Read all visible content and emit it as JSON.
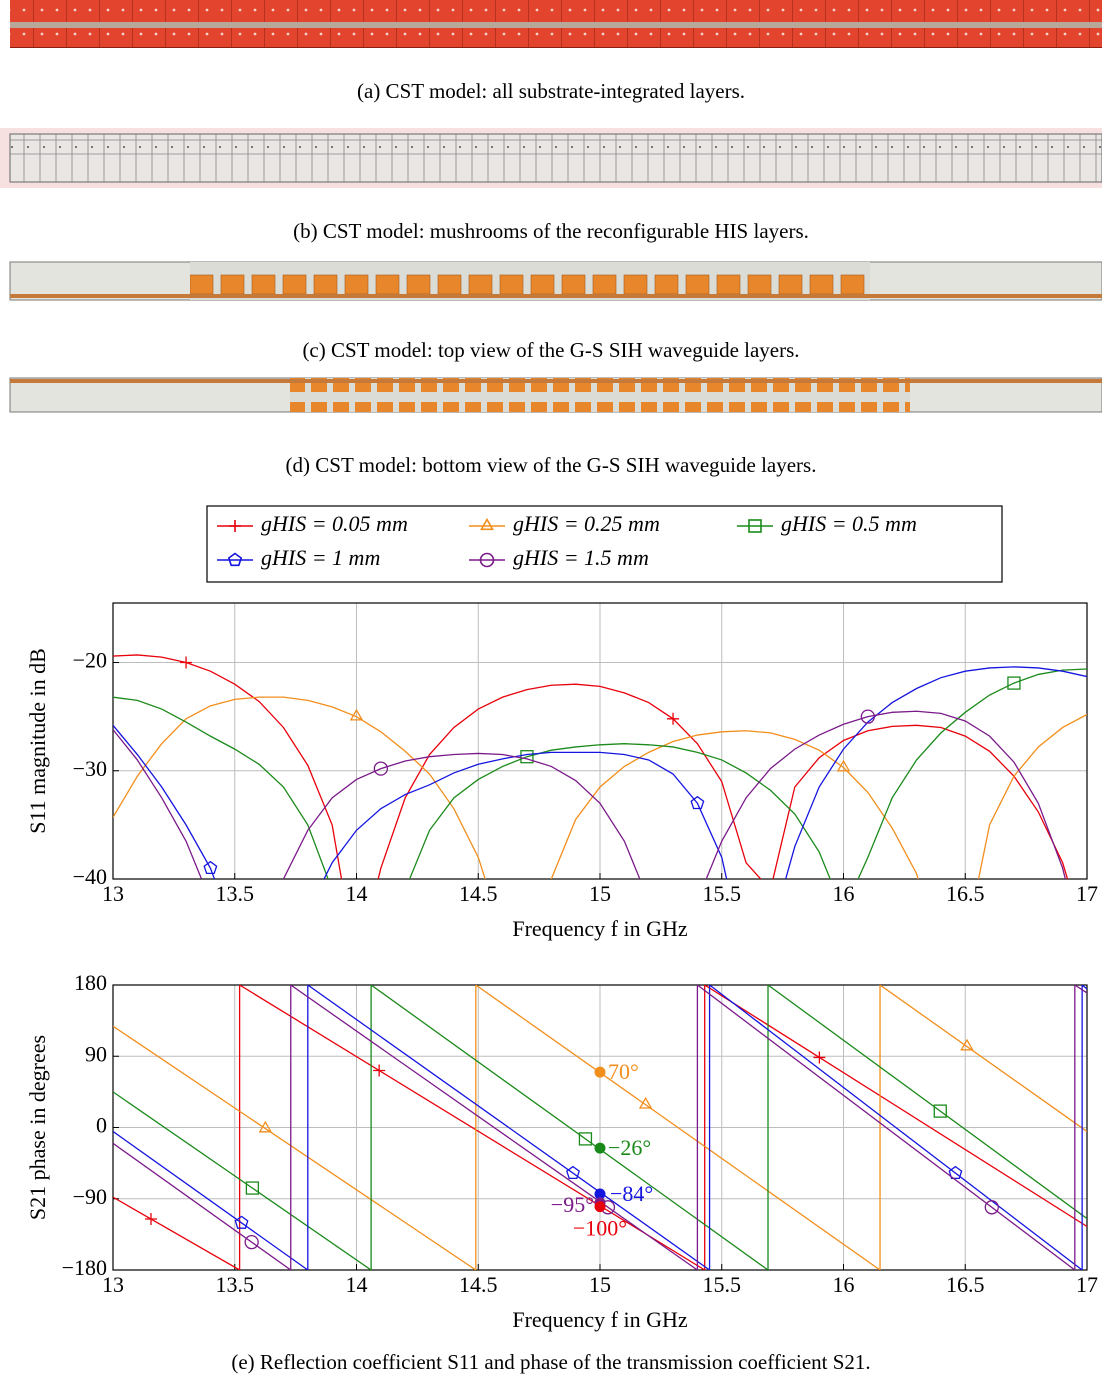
{
  "captions": [
    "(a) CST model: all substrate-integrated layers.",
    "(b) CST model: mushrooms of the reconfigurable HIS layers.",
    "(c) CST model: top view of the G-S SIH waveguide layers.",
    "(d) CST model: bottom view of the G-S SIH waveguide layers.",
    "(e) Reflection coefficient S11 and phase of the transmission coefficient S21."
  ],
  "chart_data": [
    {
      "type": "line",
      "xlabel": "Frequency f in GHz",
      "ylabel": "S11 magnitude in dB",
      "xlim": [
        13,
        17
      ],
      "ylim": [
        -40,
        -14.5
      ],
      "xticks": [
        13,
        13.5,
        14,
        14.5,
        15,
        15.5,
        16,
        16.5,
        17
      ],
      "yticks": [
        {
          "value": -40,
          "label": "−40"
        },
        {
          "value": -30,
          "label": "−30"
        },
        {
          "value": -20,
          "label": "−20"
        }
      ],
      "grid": true,
      "legend": "top",
      "x": [
        13,
        13.1,
        13.2,
        13.3,
        13.4,
        13.5,
        13.6,
        13.7,
        13.8,
        13.9,
        14,
        14.1,
        14.2,
        14.3,
        14.4,
        14.5,
        14.6,
        14.7,
        14.8,
        14.9,
        15,
        15.1,
        15.2,
        15.3,
        15.4,
        15.5,
        15.6,
        15.7,
        15.8,
        15.9,
        16,
        16.1,
        16.2,
        16.3,
        16.4,
        16.5,
        16.6,
        16.7,
        16.8,
        16.9,
        17
      ],
      "series": [
        {
          "name": "gHIS = 0.05 mm",
          "color": "#e8000b",
          "marker": "plus",
          "values": [
            -19.4,
            -19.3,
            -19.5,
            -20.0,
            -20.8,
            -22.0,
            -23.6,
            -26.0,
            -29.5,
            -35.0,
            -48,
            -39,
            -32.5,
            -28.5,
            -26.0,
            -24.3,
            -23.2,
            -22.5,
            -22.1,
            -22.0,
            -22.2,
            -22.8,
            -23.7,
            -25.2,
            -27.5,
            -31.0,
            -38.5,
            -41,
            -31.5,
            -28.8,
            -27.2,
            -26.3,
            -25.9,
            -25.8,
            -26.0,
            -26.8,
            -28.2,
            -30.5,
            -33.8,
            -38.5,
            -46
          ]
        },
        {
          "name": "gHIS = 0.25 mm",
          "color": "#f28e1c",
          "marker": "triangle",
          "values": [
            -34.3,
            -30.5,
            -27.5,
            -25.2,
            -24.0,
            -23.4,
            -23.2,
            -23.2,
            -23.5,
            -24.1,
            -25.0,
            -26.4,
            -28.2,
            -30.3,
            -33.5,
            -38.0,
            -45,
            -48,
            -40,
            -34.5,
            -31.5,
            -29.6,
            -28.3,
            -27.3,
            -26.7,
            -26.4,
            -26.3,
            -26.5,
            -27.1,
            -28.1,
            -29.7,
            -32.0,
            -35.3,
            -39.5,
            -48,
            -46,
            -35.0,
            -30.5,
            -27.8,
            -26.0,
            -24.8
          ]
        },
        {
          "name": "gHIS = 0.5 mm",
          "color": "#1a8a1a",
          "marker": "square",
          "values": [
            -23.2,
            -23.5,
            -24.3,
            -25.5,
            -26.8,
            -28.0,
            -29.4,
            -31.5,
            -35.0,
            -41,
            -50,
            -48,
            -41,
            -35.5,
            -32.5,
            -30.8,
            -29.6,
            -28.7,
            -28.1,
            -27.8,
            -27.6,
            -27.5,
            -27.6,
            -27.8,
            -28.3,
            -29.0,
            -30.2,
            -31.8,
            -34.0,
            -37.5,
            -43,
            -38,
            -32.5,
            -29.0,
            -26.5,
            -24.6,
            -23.0,
            -21.9,
            -21.1,
            -20.7,
            -20.6
          ]
        },
        {
          "name": "gHIS = 1 mm",
          "color": "#1515e0",
          "marker": "pentagon",
          "values": [
            -25.8,
            -28.5,
            -31.5,
            -35.0,
            -39.0,
            -45,
            -50,
            -50,
            -43,
            -38.5,
            -35.5,
            -33.5,
            -32.2,
            -31.3,
            -30.2,
            -29.4,
            -28.9,
            -28.5,
            -28.3,
            -28.3,
            -28.3,
            -28.5,
            -29.0,
            -30.3,
            -33.0,
            -38.0,
            -48,
            -45,
            -37.0,
            -31.5,
            -28.0,
            -25.5,
            -23.7,
            -22.4,
            -21.4,
            -20.8,
            -20.5,
            -20.4,
            -20.5,
            -20.8,
            -21.3
          ]
        },
        {
          "name": "gHIS = 1.5 mm",
          "color": "#7b1a8a",
          "marker": "circle",
          "values": [
            -26.2,
            -29.0,
            -32.5,
            -36.5,
            -42,
            -50,
            -46,
            -40,
            -35.5,
            -32.5,
            -30.8,
            -29.8,
            -29.1,
            -28.7,
            -28.5,
            -28.4,
            -28.5,
            -28.9,
            -29.6,
            -30.9,
            -33.0,
            -36.5,
            -42,
            -48,
            -42,
            -36.5,
            -32.5,
            -29.8,
            -28.0,
            -26.7,
            -25.7,
            -25.0,
            -24.6,
            -24.5,
            -24.7,
            -25.4,
            -26.8,
            -29.2,
            -33.0,
            -39.0,
            -48
          ]
        }
      ]
    },
    {
      "type": "line",
      "xlabel": "Frequency f in GHz",
      "ylabel": "S21 phase in degrees",
      "xlim": [
        13,
        17
      ],
      "ylim": [
        -180,
        180
      ],
      "xticks": [
        13,
        13.5,
        14,
        14.5,
        15,
        15.5,
        16,
        16.5,
        17
      ],
      "yticks": [
        {
          "value": -180,
          "label": "−180"
        },
        {
          "value": -90,
          "label": "−90"
        },
        0,
        90,
        180
      ],
      "grid": true,
      "series": [
        {
          "color": "#e8000b",
          "marker": "plus",
          "x": [
            13,
            13.52,
            13.52,
            15.43,
            15.43,
            17
          ],
          "values": [
            -88,
            -180,
            180,
            -180,
            180,
            -125
          ]
        },
        {
          "color": "#f28e1c",
          "marker": "triangle",
          "x": [
            13,
            14.49,
            14.49,
            16.15,
            16.15,
            17
          ],
          "values": [
            128,
            -180,
            180,
            -180,
            180,
            -5
          ]
        },
        {
          "color": "#1a8a1a",
          "marker": "square",
          "x": [
            13,
            14.06,
            14.06,
            15.69,
            15.69,
            17
          ],
          "values": [
            45,
            -180,
            180,
            -180,
            180,
            -115
          ]
        },
        {
          "color": "#1515e0",
          "marker": "pentagon",
          "x": [
            13,
            13.8,
            13.8,
            15.45,
            15.45,
            16.98,
            16.98,
            17
          ],
          "values": [
            -5,
            -180,
            180,
            -180,
            180,
            -180,
            180,
            175
          ]
        },
        {
          "color": "#7b1a8a",
          "marker": "circle",
          "x": [
            13,
            13.73,
            13.73,
            15.4,
            15.4,
            16.95,
            16.95,
            17
          ],
          "values": [
            -20,
            -180,
            180,
            -180,
            180,
            -180,
            180,
            170
          ]
        }
      ],
      "annotations": [
        {
          "x": 15,
          "y": 70,
          "label": "70°",
          "color": "#f28e1c"
        },
        {
          "x": 15,
          "y": -26,
          "label": "−26°",
          "color": "#1a8a1a"
        },
        {
          "x": 15,
          "y": -84,
          "label": "−84°",
          "color": "#1515e0"
        },
        {
          "x": 15,
          "y": -95,
          "label": "−95°",
          "color": "#7b1a8a"
        },
        {
          "x": 15,
          "y": -100,
          "label": "−100°",
          "color": "#e8000b"
        }
      ]
    }
  ]
}
